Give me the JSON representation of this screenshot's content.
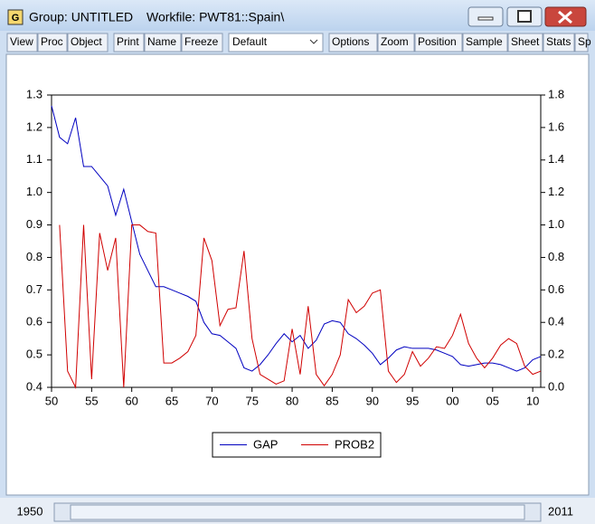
{
  "window": {
    "icon": "G",
    "title": "Group: UNTITLED",
    "workfile": "Workfile: PWT81::Spain\\"
  },
  "toolbar": {
    "buttons": [
      "View",
      "Proc",
      "Object",
      "Print",
      "Name",
      "Freeze",
      "Default",
      "Options",
      "Zoom",
      "Position",
      "Sample",
      "Sheet",
      "Stats",
      "Sp"
    ]
  },
  "sample": {
    "start": "1950",
    "end": "2011"
  },
  "chart_data": {
    "type": "line",
    "x": [
      1950,
      1951,
      1952,
      1953,
      1954,
      1955,
      1956,
      1957,
      1958,
      1959,
      1960,
      1961,
      1962,
      1963,
      1964,
      1965,
      1966,
      1967,
      1968,
      1969,
      1970,
      1971,
      1972,
      1973,
      1974,
      1975,
      1976,
      1977,
      1978,
      1979,
      1980,
      1981,
      1982,
      1983,
      1984,
      1985,
      1986,
      1987,
      1988,
      1989,
      1990,
      1991,
      1992,
      1993,
      1994,
      1995,
      1996,
      1997,
      1998,
      1999,
      2000,
      2001,
      2002,
      2003,
      2004,
      2005,
      2006,
      2007,
      2008,
      2009,
      2010,
      2011
    ],
    "series": [
      {
        "name": "GAP",
        "color": "#0000c0",
        "values": [
          1.267,
          1.17,
          1.15,
          1.23,
          1.08,
          1.08,
          1.05,
          1.02,
          0.93,
          1.01,
          0.91,
          0.81,
          0.76,
          0.71,
          0.71,
          0.7,
          0.69,
          0.68,
          0.665,
          0.6,
          0.565,
          0.56,
          0.54,
          0.52,
          0.46,
          0.45,
          0.47,
          0.5,
          0.535,
          0.565,
          0.54,
          0.56,
          0.52,
          0.545,
          0.595,
          0.605,
          0.6,
          0.565,
          0.55,
          0.53,
          0.505,
          0.47,
          0.49,
          0.515,
          0.525,
          0.52,
          0.52,
          0.52,
          0.515,
          0.505,
          0.495,
          0.47,
          0.465,
          0.47,
          0.475,
          0.475,
          0.47,
          0.46,
          0.45,
          0.46,
          0.485,
          0.495
        ]
      },
      {
        "name": "PROB2",
        "color": "#d00000",
        "axis": "y2",
        "values": [
          null,
          1.0,
          0.1,
          0.0,
          1.0,
          0.05,
          0.95,
          0.72,
          0.92,
          0.0,
          1.0,
          1.0,
          0.96,
          0.95,
          0.15,
          0.15,
          0.18,
          0.22,
          0.32,
          0.92,
          0.78,
          0.38,
          0.48,
          0.49,
          0.84,
          0.3,
          0.08,
          0.05,
          0.02,
          0.04,
          0.36,
          0.08,
          0.5,
          0.08,
          0.01,
          0.08,
          0.2,
          0.54,
          0.46,
          0.5,
          0.58,
          0.6,
          0.1,
          0.03,
          0.08,
          0.22,
          0.13,
          0.18,
          0.25,
          0.24,
          0.32,
          0.45,
          0.27,
          0.18,
          0.12,
          0.18,
          0.26,
          0.3,
          0.27,
          0.13,
          0.08,
          0.1
        ]
      }
    ],
    "xlim": [
      1950,
      2011
    ],
    "xticks": [
      {
        "value": 1950,
        "label": "50"
      },
      {
        "value": 1955,
        "label": "55"
      },
      {
        "value": 1960,
        "label": "60"
      },
      {
        "value": 1965,
        "label": "65"
      },
      {
        "value": 1970,
        "label": "70"
      },
      {
        "value": 1975,
        "label": "75"
      },
      {
        "value": 1980,
        "label": "80"
      },
      {
        "value": 1985,
        "label": "85"
      },
      {
        "value": 1990,
        "label": "90"
      },
      {
        "value": 1995,
        "label": "95"
      },
      {
        "value": 2000,
        "label": "00"
      },
      {
        "value": 2005,
        "label": "05"
      },
      {
        "value": 2010,
        "label": "10"
      }
    ],
    "ylim": [
      0.4,
      1.3
    ],
    "yticks": [
      0.4,
      0.5,
      0.6,
      0.7,
      0.8,
      0.9,
      {
        "value": 1,
        "label": "1.0"
      },
      1.1,
      1.2,
      1.3
    ],
    "y2lim": [
      0,
      1.8
    ],
    "y2ticks": [
      {
        "value": 0,
        "label": "0.0"
      },
      0.2,
      0.4,
      0.6,
      0.8,
      {
        "value": 1,
        "label": "1.0"
      },
      1.2,
      1.4,
      1.6,
      1.8
    ],
    "legend": "bottom"
  }
}
